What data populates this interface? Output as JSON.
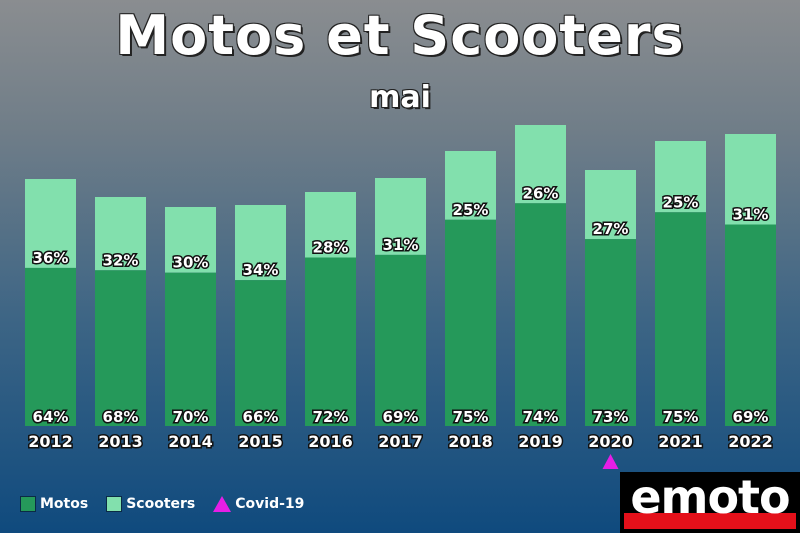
{
  "title": "Motos et Scooters",
  "subtitle": "mai",
  "chart_data": {
    "type": "bar",
    "stacked": true,
    "categories": [
      "2012",
      "2013",
      "2014",
      "2015",
      "2016",
      "2017",
      "2018",
      "2019",
      "2020",
      "2021",
      "2022"
    ],
    "totals_relative": [
      247,
      229,
      219,
      221,
      234,
      248,
      275,
      301,
      256,
      285,
      292
    ],
    "series": [
      {
        "name": "Motos",
        "color": "#25995a",
        "values": [
          64,
          68,
          70,
          66,
          72,
          69,
          75,
          74,
          73,
          75,
          69
        ],
        "labels": [
          "64%",
          "68%",
          "70%",
          "66%",
          "72%",
          "69%",
          "75%",
          "74%",
          "73%",
          "75%",
          "69%"
        ]
      },
      {
        "name": "Scooters",
        "color": "#82e0ad",
        "values": [
          36,
          32,
          30,
          34,
          28,
          31,
          25,
          26,
          27,
          25,
          31
        ],
        "labels": [
          "36%",
          "32%",
          "30%",
          "34%",
          "28%",
          "31%",
          "25%",
          "26%",
          "27%",
          "25%",
          "31%"
        ]
      }
    ],
    "annotations": [
      {
        "category": "2020",
        "marker": "triangle",
        "color": "#e61ee6",
        "label": "Covid-19"
      }
    ],
    "legend": {
      "position": "bottom-left",
      "items": [
        {
          "label": "Motos",
          "color": "#25995a",
          "shape": "square"
        },
        {
          "label": "Scooters",
          "color": "#82e0ad",
          "shape": "square"
        },
        {
          "label": "Covid-19",
          "color": "#e61ee6",
          "shape": "triangle"
        }
      ]
    },
    "grid": false,
    "xlabel": "",
    "ylabel": ""
  },
  "logo": {
    "text": "emoto"
  }
}
